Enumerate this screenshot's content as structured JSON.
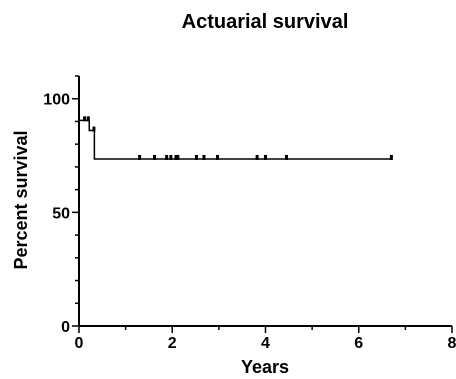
{
  "chart_data": {
    "type": "line",
    "title": "Actuarial survival",
    "xlabel": "Years",
    "ylabel": "Percent survival",
    "xlim": [
      0,
      8
    ],
    "ylim": [
      0,
      110
    ],
    "x_ticks": [
      0,
      2,
      4,
      6,
      8
    ],
    "y_ticks": [
      0,
      50,
      100
    ],
    "x_tick_labels": [
      "0",
      "2",
      "4",
      "6",
      "8"
    ],
    "y_tick_labels": [
      "0",
      "50",
      "100"
    ],
    "grid": false,
    "legend": "none",
    "series": [
      {
        "step_curve": [
          {
            "x": 0.0,
            "y": 90.5
          },
          {
            "x": 0.22,
            "y": 90.5
          },
          {
            "x": 0.22,
            "y": 86.0
          },
          {
            "x": 0.33,
            "y": 86.0
          },
          {
            "x": 0.33,
            "y": 73.5
          },
          {
            "x": 6.72,
            "y": 73.5
          }
        ],
        "censored": [
          {
            "x": 0.12,
            "y": 90.5
          },
          {
            "x": 0.2,
            "y": 90.5
          },
          {
            "x": 0.32,
            "y": 86.0
          },
          {
            "x": 1.3,
            "y": 73.5
          },
          {
            "x": 1.62,
            "y": 73.5
          },
          {
            "x": 1.88,
            "y": 73.5
          },
          {
            "x": 1.97,
            "y": 73.5
          },
          {
            "x": 2.08,
            "y": 73.5
          },
          {
            "x": 2.12,
            "y": 73.5
          },
          {
            "x": 2.52,
            "y": 73.5
          },
          {
            "x": 2.68,
            "y": 73.5
          },
          {
            "x": 2.97,
            "y": 73.5
          },
          {
            "x": 3.82,
            "y": 73.5
          },
          {
            "x": 4.0,
            "y": 73.5
          },
          {
            "x": 4.45,
            "y": 73.5
          },
          {
            "x": 6.7,
            "y": 73.5
          }
        ]
      }
    ]
  }
}
